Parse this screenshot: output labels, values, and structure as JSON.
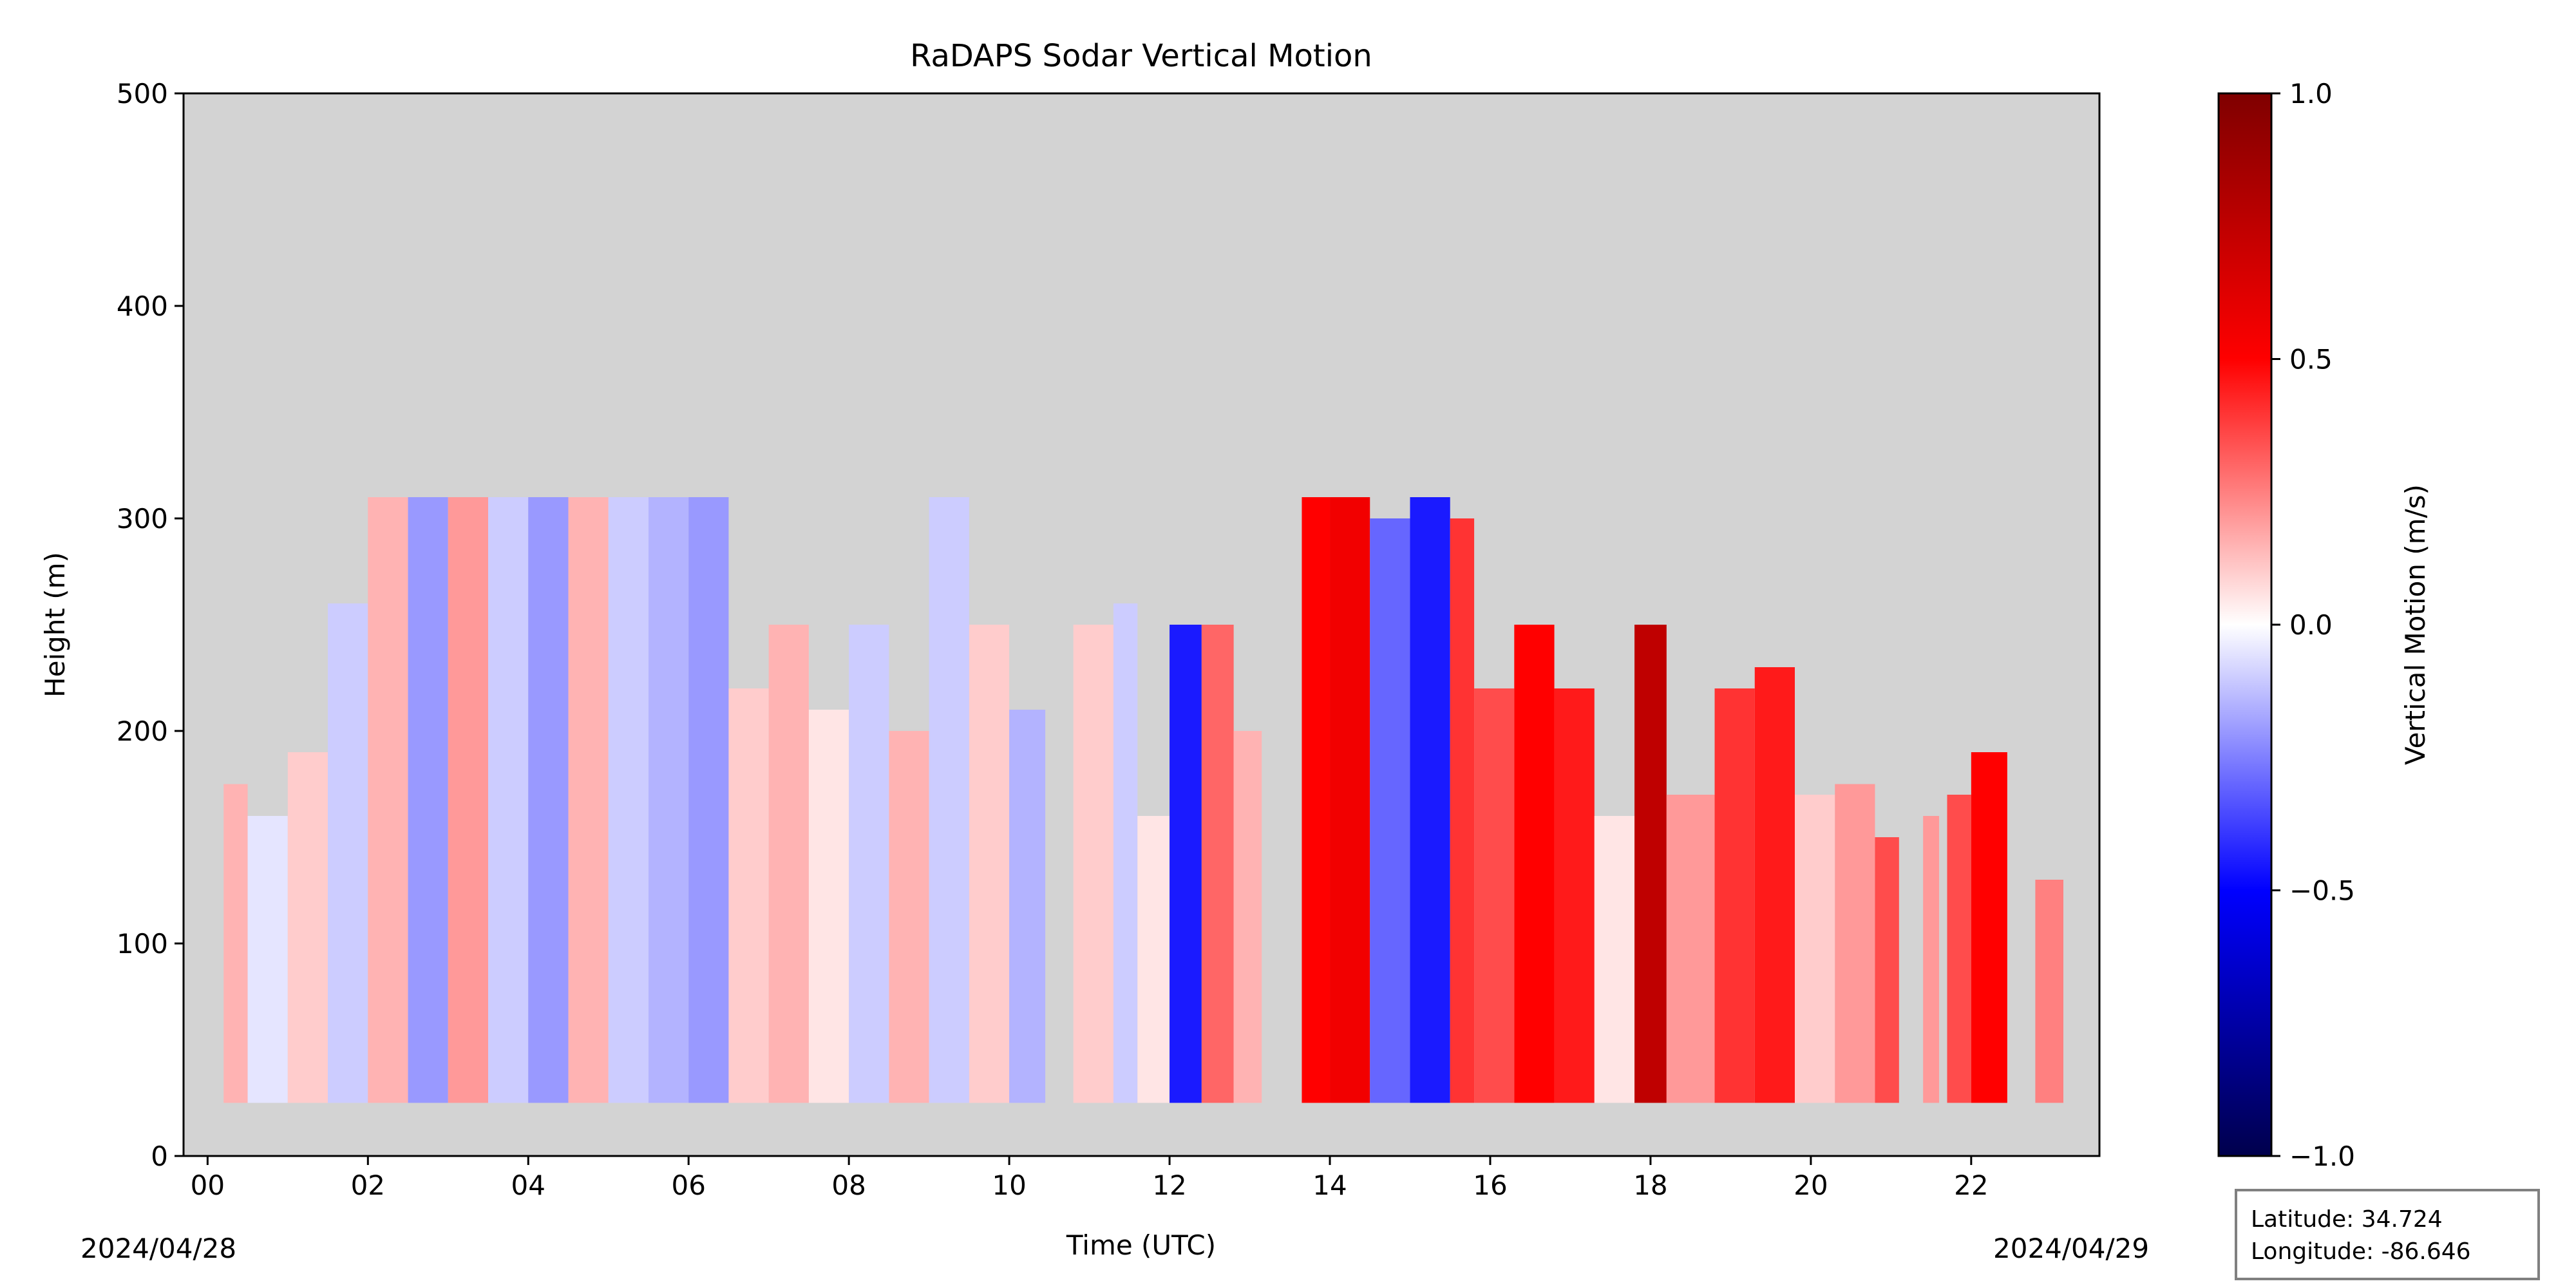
{
  "chart_data": {
    "type": "heatmap",
    "title": "RaDAPS Sodar Vertical Motion",
    "xlabel": "Time (UTC)",
    "ylabel": "Height (m)",
    "xlim": [
      -0.3,
      23.6
    ],
    "ylim": [
      0,
      500
    ],
    "x_ticks": [
      0,
      2,
      4,
      6,
      8,
      10,
      12,
      14,
      16,
      18,
      20,
      22
    ],
    "x_tick_labels": [
      "00",
      "02",
      "04",
      "06",
      "08",
      "10",
      "12",
      "14",
      "16",
      "18",
      "20",
      "22"
    ],
    "y_ticks": [
      0,
      100,
      200,
      300,
      400,
      500
    ],
    "y_tick_labels": [
      "0",
      "100",
      "200",
      "300",
      "400",
      "500"
    ],
    "start_date": "2024/04/28",
    "end_date": "2024/04/29",
    "background_color": "#d3d3d3",
    "colormap": "seismic",
    "colorbar": {
      "label": "Vertical Motion (m/s)",
      "min": -1.0,
      "max": 1.0,
      "ticks": [
        -1.0,
        -0.5,
        0.0,
        0.5,
        1.0
      ],
      "tick_labels": [
        "−1.0",
        "−0.5",
        "0.0",
        "0.5",
        "1.0"
      ],
      "colors": [
        "#00004c",
        "#0000ff",
        "#ffffff",
        "#ff0000",
        "#7f0000"
      ]
    },
    "height_range_m": [
      25,
      310
    ],
    "profiles": [
      {
        "start": 0.2,
        "end": 0.5,
        "top": 175,
        "w": 0.15
      },
      {
        "start": 0.5,
        "end": 1.0,
        "top": 160,
        "w": -0.05
      },
      {
        "start": 1.0,
        "end": 1.5,
        "top": 190,
        "w": 0.1
      },
      {
        "start": 1.5,
        "end": 2.0,
        "top": 260,
        "w": -0.1
      },
      {
        "start": 2.0,
        "end": 2.5,
        "top": 310,
        "w": 0.15
      },
      {
        "start": 2.5,
        "end": 3.0,
        "top": 310,
        "w": -0.2
      },
      {
        "start": 3.0,
        "end": 3.5,
        "top": 310,
        "w": 0.2
      },
      {
        "start": 3.5,
        "end": 4.0,
        "top": 310,
        "w": -0.1
      },
      {
        "start": 4.0,
        "end": 4.5,
        "top": 310,
        "w": -0.2
      },
      {
        "start": 4.5,
        "end": 5.0,
        "top": 310,
        "w": 0.15
      },
      {
        "start": 5.0,
        "end": 5.5,
        "top": 310,
        "w": -0.1
      },
      {
        "start": 5.5,
        "end": 6.0,
        "top": 310,
        "w": -0.15
      },
      {
        "start": 6.0,
        "end": 6.5,
        "top": 310,
        "w": -0.2
      },
      {
        "start": 6.5,
        "end": 7.0,
        "top": 220,
        "w": 0.1
      },
      {
        "start": 7.0,
        "end": 7.5,
        "top": 250,
        "w": 0.15
      },
      {
        "start": 7.5,
        "end": 8.0,
        "top": 210,
        "w": 0.05
      },
      {
        "start": 8.0,
        "end": 8.5,
        "top": 250,
        "w": -0.1
      },
      {
        "start": 8.5,
        "end": 9.0,
        "top": 200,
        "w": 0.15
      },
      {
        "start": 9.0,
        "end": 9.5,
        "top": 310,
        "w": -0.1
      },
      {
        "start": 9.5,
        "end": 10.0,
        "top": 250,
        "w": 0.1
      },
      {
        "start": 10.0,
        "end": 10.45,
        "top": 210,
        "w": -0.15
      },
      {
        "start": 10.8,
        "end": 11.3,
        "top": 250,
        "w": 0.1
      },
      {
        "start": 11.3,
        "end": 11.6,
        "top": 260,
        "w": -0.1
      },
      {
        "start": 11.6,
        "end": 12.0,
        "top": 160,
        "w": 0.05
      },
      {
        "start": 12.0,
        "end": 12.4,
        "top": 250,
        "w": -0.45
      },
      {
        "start": 12.4,
        "end": 12.8,
        "top": 250,
        "w": 0.3
      },
      {
        "start": 12.8,
        "end": 13.15,
        "top": 200,
        "w": 0.15
      },
      {
        "start": 13.65,
        "end": 14.0,
        "top": 310,
        "w": 0.5
      },
      {
        "start": 14.0,
        "end": 14.5,
        "top": 310,
        "w": 0.55
      },
      {
        "start": 14.5,
        "end": 15.0,
        "top": 300,
        "w": -0.3
      },
      {
        "start": 15.0,
        "end": 15.5,
        "top": 310,
        "w": -0.45
      },
      {
        "start": 15.5,
        "end": 15.8,
        "top": 300,
        "w": 0.4
      },
      {
        "start": 15.8,
        "end": 16.3,
        "top": 220,
        "w": 0.35
      },
      {
        "start": 16.3,
        "end": 16.8,
        "top": 250,
        "w": 0.5
      },
      {
        "start": 16.8,
        "end": 17.3,
        "top": 220,
        "w": 0.45
      },
      {
        "start": 17.3,
        "end": 17.8,
        "top": 160,
        "w": 0.05
      },
      {
        "start": 17.8,
        "end": 18.2,
        "top": 250,
        "w": 0.75
      },
      {
        "start": 18.2,
        "end": 18.8,
        "top": 170,
        "w": 0.2
      },
      {
        "start": 18.8,
        "end": 19.3,
        "top": 220,
        "w": 0.4
      },
      {
        "start": 19.3,
        "end": 19.8,
        "top": 230,
        "w": 0.45
      },
      {
        "start": 19.8,
        "end": 20.3,
        "top": 170,
        "w": 0.1
      },
      {
        "start": 20.3,
        "end": 20.8,
        "top": 175,
        "w": 0.2
      },
      {
        "start": 20.8,
        "end": 21.1,
        "top": 150,
        "w": 0.35
      },
      {
        "start": 21.4,
        "end": 21.6,
        "top": 160,
        "w": 0.2
      },
      {
        "start": 21.7,
        "end": 22.0,
        "top": 170,
        "w": 0.35
      },
      {
        "start": 22.0,
        "end": 22.45,
        "top": 190,
        "w": 0.5
      },
      {
        "start": 22.8,
        "end": 23.15,
        "top": 130,
        "w": 0.25
      }
    ]
  },
  "info_box": {
    "latitude": "Latitude: 34.724",
    "longitude": "Longitude: -86.646"
  }
}
